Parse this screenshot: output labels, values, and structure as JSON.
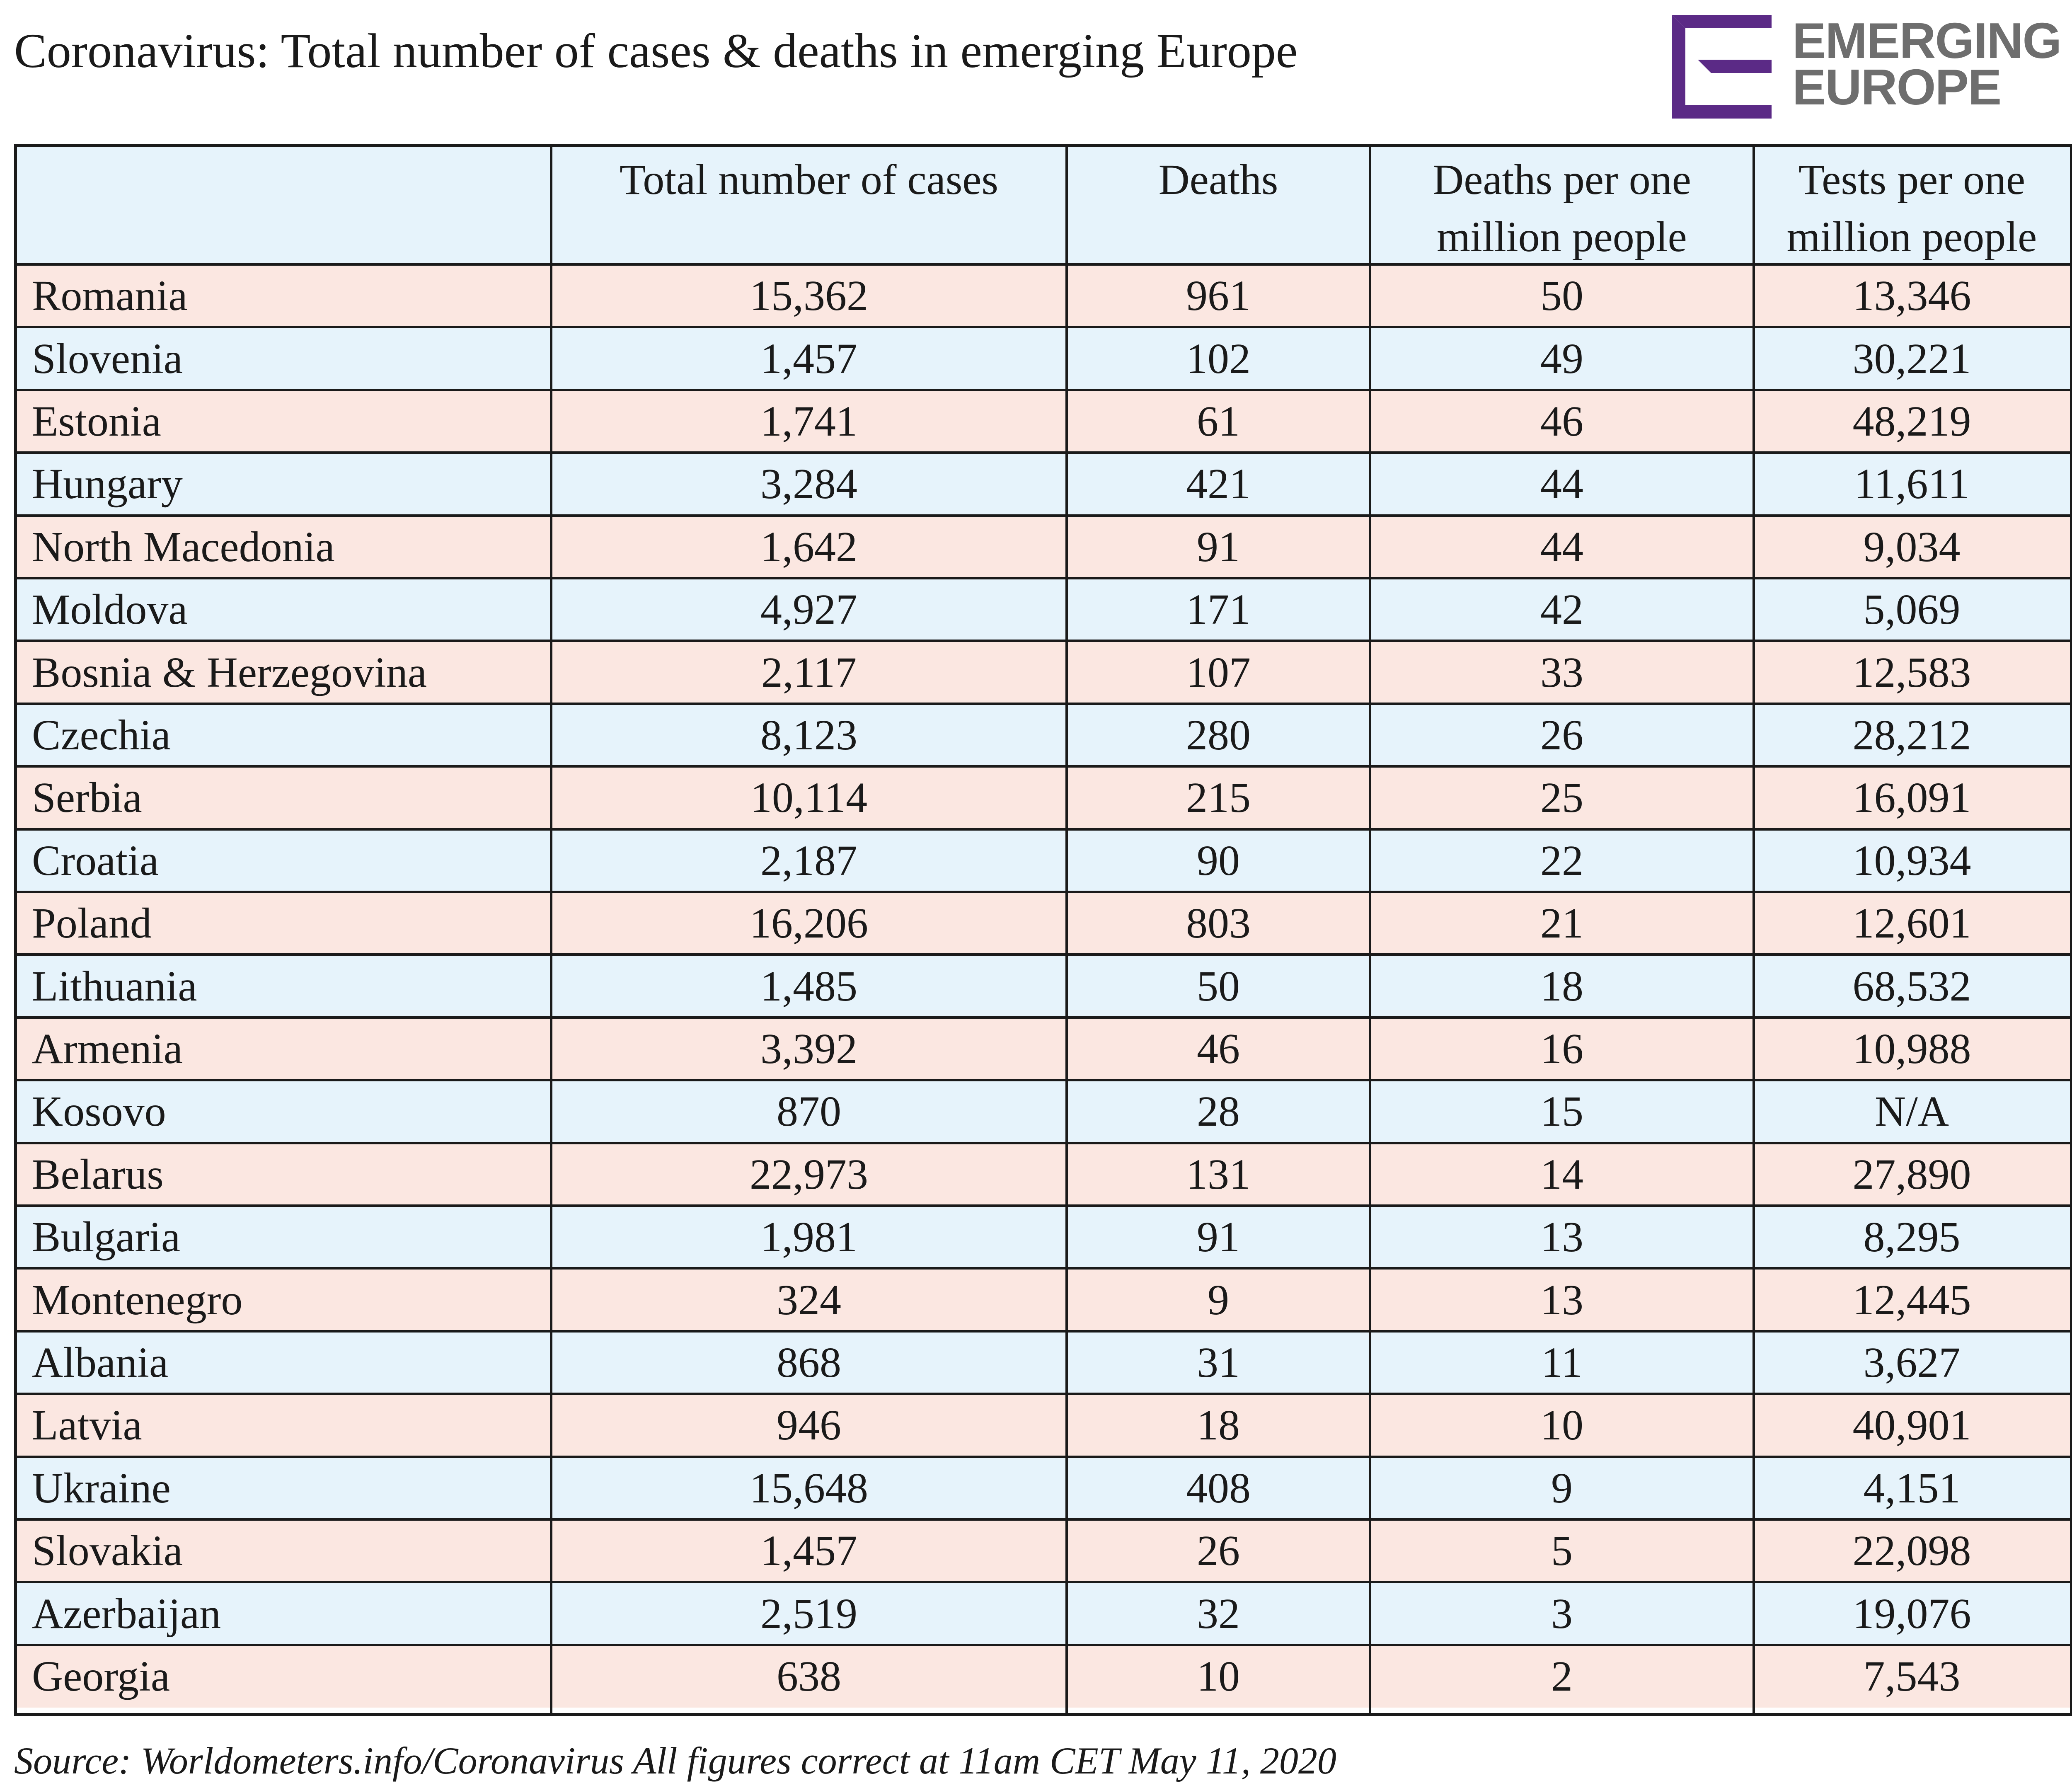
{
  "title": "Coronavirus: Total number of cases & deaths in emerging Europe",
  "logo": {
    "line1": "EMERGING",
    "line2": "EUROPE",
    "icon": "emerging-europe-e-icon",
    "color": "#5b2a86"
  },
  "source": "Source: Worldometers.info/Coronavirus All figures correct at 11am CET May 11, 2020",
  "colors": {
    "header_bg": "#e6f3fb",
    "odd_row_bg": "#fbe7e1",
    "even_row_bg": "#e6f3fb",
    "border": "#1a1a1a"
  },
  "chart_data": {
    "type": "table",
    "title": "Coronavirus: Total number of cases & deaths in emerging Europe",
    "columns": [
      "",
      "Total number of cases",
      "Deaths",
      "Deaths per one million people",
      "Tests per one million people"
    ],
    "rows": [
      [
        "Romania",
        "15,362",
        "961",
        "50",
        "13,346"
      ],
      [
        "Slovenia",
        "1,457",
        "102",
        "49",
        "30,221"
      ],
      [
        "Estonia",
        "1,741",
        "61",
        "46",
        "48,219"
      ],
      [
        "Hungary",
        "3,284",
        "421",
        "44",
        "11,611"
      ],
      [
        "North Macedonia",
        "1,642",
        "91",
        "44",
        "9,034"
      ],
      [
        "Moldova",
        "4,927",
        "171",
        "42",
        "5,069"
      ],
      [
        "Bosnia & Herzegovina",
        "2,117",
        "107",
        "33",
        "12,583"
      ],
      [
        "Czechia",
        "8,123",
        "280",
        "26",
        "28,212"
      ],
      [
        "Serbia",
        "10,114",
        "215",
        "25",
        "16,091"
      ],
      [
        "Croatia",
        "2,187",
        "90",
        "22",
        "10,934"
      ],
      [
        "Poland",
        "16,206",
        "803",
        "21",
        "12,601"
      ],
      [
        "Lithuania",
        "1,485",
        "50",
        "18",
        "68,532"
      ],
      [
        "Armenia",
        "3,392",
        "46",
        "16",
        "10,988"
      ],
      [
        "Kosovo",
        "870",
        "28",
        "15",
        "N/A"
      ],
      [
        "Belarus",
        "22,973",
        "131",
        "14",
        "27,890"
      ],
      [
        "Bulgaria",
        "1,981",
        "91",
        "13",
        "8,295"
      ],
      [
        "Montenegro",
        "324",
        "9",
        "13",
        "12,445"
      ],
      [
        "Albania",
        "868",
        "31",
        "11",
        "3,627"
      ],
      [
        "Latvia",
        "946",
        "18",
        "10",
        "40,901"
      ],
      [
        "Ukraine",
        "15,648",
        "408",
        "9",
        "4,151"
      ],
      [
        "Slovakia",
        "1,457",
        "26",
        "5",
        "22,098"
      ],
      [
        "Azerbaijan",
        "2,519",
        "32",
        "3",
        "19,076"
      ],
      [
        "Georgia",
        "638",
        "10",
        "2",
        "7,543"
      ]
    ]
  }
}
